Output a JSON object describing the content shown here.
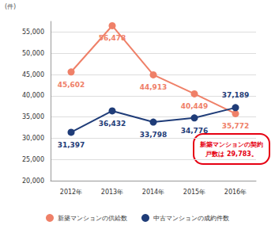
{
  "chart_data": {
    "type": "line",
    "y_label": "(件)",
    "categories": [
      "2012年",
      "2013年",
      "2014年",
      "2015年",
      "2016年"
    ],
    "series": [
      {
        "name": "新築マンションの供給数",
        "color": "#ef8068",
        "marker": "circle",
        "values": [
          45602,
          56478,
          44913,
          40449,
          35772
        ],
        "value_labels": [
          "45,602",
          "56,478",
          "44,913",
          "40,449",
          "35,772"
        ]
      },
      {
        "name": "中古マンションの成約件数",
        "color": "#1f3c78",
        "marker": "circle",
        "values": [
          31397,
          36432,
          33798,
          34776,
          37189
        ],
        "value_labels": [
          "31,397",
          "36,432",
          "33,798",
          "34,776",
          "37,189"
        ]
      }
    ],
    "ylim": [
      20000,
      57500
    ],
    "yticks": [
      {
        "value": 20000,
        "label": "20,000"
      },
      {
        "value": 25000,
        "label": "25,000"
      },
      {
        "value": 30000,
        "label": "30,000"
      },
      {
        "value": 35000,
        "label": "35,000"
      },
      {
        "value": 40000,
        "label": "40,000"
      },
      {
        "value": 45000,
        "label": "45,000"
      },
      {
        "value": 50000,
        "label": "50,000"
      },
      {
        "value": 55000,
        "label": "55,000"
      }
    ],
    "grid": true,
    "legend": "bottom",
    "data_labels": true,
    "annotations": [
      {
        "text": "新築マンションの契約戸数は 29,783。"
      }
    ]
  }
}
